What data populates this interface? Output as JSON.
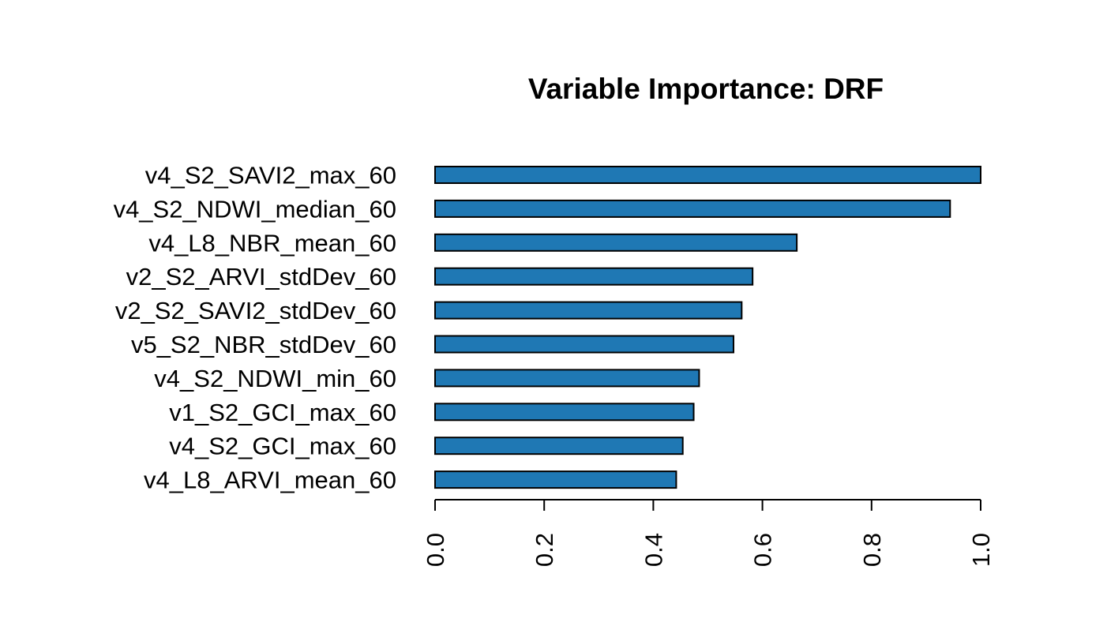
{
  "chart_data": {
    "type": "bar",
    "orientation": "horizontal",
    "title": "Variable Importance: DRF",
    "xlabel": "",
    "ylabel": "",
    "categories": [
      "v4_S2_SAVI2_max_60",
      "v4_S2_NDWI_median_60",
      "v4_L8_NBR_mean_60",
      "v2_S2_ARVI_stdDev_60",
      "v2_S2_SAVI2_stdDev_60",
      "v5_S2_NBR_stdDev_60",
      "v4_S2_NDWI_min_60",
      "v1_S2_GCI_max_60",
      "v4_S2_GCI_max_60",
      "v4_L8_ARVI_mean_60"
    ],
    "values": [
      1.0,
      0.944,
      0.663,
      0.582,
      0.562,
      0.547,
      0.484,
      0.474,
      0.454,
      0.442
    ],
    "xlim": [
      0,
      1.0
    ],
    "x_ticks": [
      "0.0",
      "0.2",
      "0.4",
      "0.6",
      "0.8",
      "1.0"
    ],
    "x_tick_values": [
      0,
      0.2,
      0.4,
      0.6,
      0.8,
      1.0
    ],
    "grid": false,
    "bar_color": "#1f78b4",
    "bar_border_color": "#000000"
  }
}
